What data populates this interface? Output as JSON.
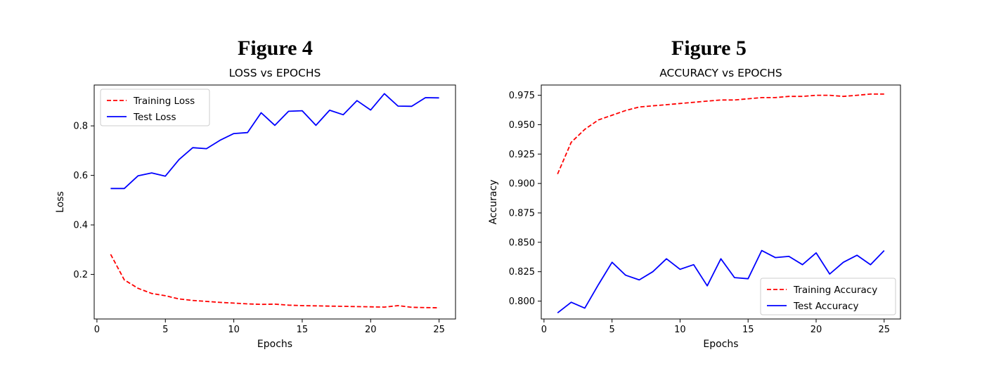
{
  "figures": [
    {
      "caption": "Figure 4"
    },
    {
      "caption": "Figure 5"
    }
  ],
  "chart_data": [
    {
      "type": "line",
      "title": "LOSS vs EPOCHS",
      "xlabel": "Epochs",
      "ylabel": "Loss",
      "xlim": [
        -0.2,
        26.2
      ],
      "ylim": [
        0.02,
        0.965
      ],
      "xticks": [
        0,
        5,
        10,
        15,
        20,
        25
      ],
      "yticks": [
        0.2,
        0.4,
        0.6,
        0.8
      ],
      "ytick_labels": [
        "0.2",
        "0.4",
        "0.6",
        "0.8"
      ],
      "legend_position": "top-left",
      "grid": false,
      "x": [
        1,
        2,
        3,
        4,
        5,
        6,
        7,
        8,
        9,
        10,
        11,
        12,
        13,
        14,
        15,
        16,
        17,
        18,
        19,
        20,
        21,
        22,
        23,
        24,
        25
      ],
      "series": [
        {
          "name": "Training Loss",
          "color": "#ff0000",
          "style": "dashed",
          "values": [
            0.281,
            0.178,
            0.144,
            0.123,
            0.114,
            0.101,
            0.095,
            0.091,
            0.087,
            0.084,
            0.081,
            0.079,
            0.08,
            0.076,
            0.074,
            0.073,
            0.072,
            0.071,
            0.07,
            0.069,
            0.068,
            0.074,
            0.067,
            0.066,
            0.065
          ]
        },
        {
          "name": "Test Loss",
          "color": "#0000ff",
          "style": "solid",
          "values": [
            0.547,
            0.547,
            0.598,
            0.61,
            0.597,
            0.664,
            0.712,
            0.708,
            0.742,
            0.769,
            0.773,
            0.853,
            0.802,
            0.859,
            0.861,
            0.802,
            0.863,
            0.845,
            0.902,
            0.864,
            0.93,
            0.88,
            0.879,
            0.914,
            0.913
          ]
        }
      ]
    },
    {
      "type": "line",
      "title": "ACCURACY vs EPOCHS",
      "xlabel": "Epochs",
      "ylabel": "Accuracy",
      "xlim": [
        -0.2,
        26.2
      ],
      "ylim": [
        0.7848,
        0.9837
      ],
      "xticks": [
        0,
        5,
        10,
        15,
        20,
        25
      ],
      "yticks": [
        0.8,
        0.825,
        0.85,
        0.875,
        0.9,
        0.925,
        0.95,
        0.975
      ],
      "ytick_labels": [
        "0.800",
        "0.825",
        "0.850",
        "0.875",
        "0.900",
        "0.925",
        "0.950",
        "0.975"
      ],
      "legend_position": "lower-right",
      "grid": false,
      "x": [
        1,
        2,
        3,
        4,
        5,
        6,
        7,
        8,
        9,
        10,
        11,
        12,
        13,
        14,
        15,
        16,
        17,
        18,
        19,
        20,
        21,
        22,
        23,
        24,
        25
      ],
      "series": [
        {
          "name": "Training Accuracy",
          "color": "#ff0000",
          "style": "dashed",
          "values": [
            0.908,
            0.935,
            0.946,
            0.954,
            0.958,
            0.962,
            0.965,
            0.966,
            0.967,
            0.968,
            0.969,
            0.97,
            0.971,
            0.971,
            0.972,
            0.973,
            0.973,
            0.974,
            0.974,
            0.975,
            0.975,
            0.974,
            0.975,
            0.976,
            0.976
          ]
        },
        {
          "name": "Test Accuracy",
          "color": "#0000ff",
          "style": "solid",
          "values": [
            0.79,
            0.799,
            0.794,
            0.814,
            0.833,
            0.822,
            0.818,
            0.825,
            0.836,
            0.827,
            0.831,
            0.813,
            0.836,
            0.82,
            0.819,
            0.843,
            0.837,
            0.838,
            0.831,
            0.841,
            0.823,
            0.833,
            0.839,
            0.831,
            0.843
          ]
        }
      ]
    }
  ]
}
